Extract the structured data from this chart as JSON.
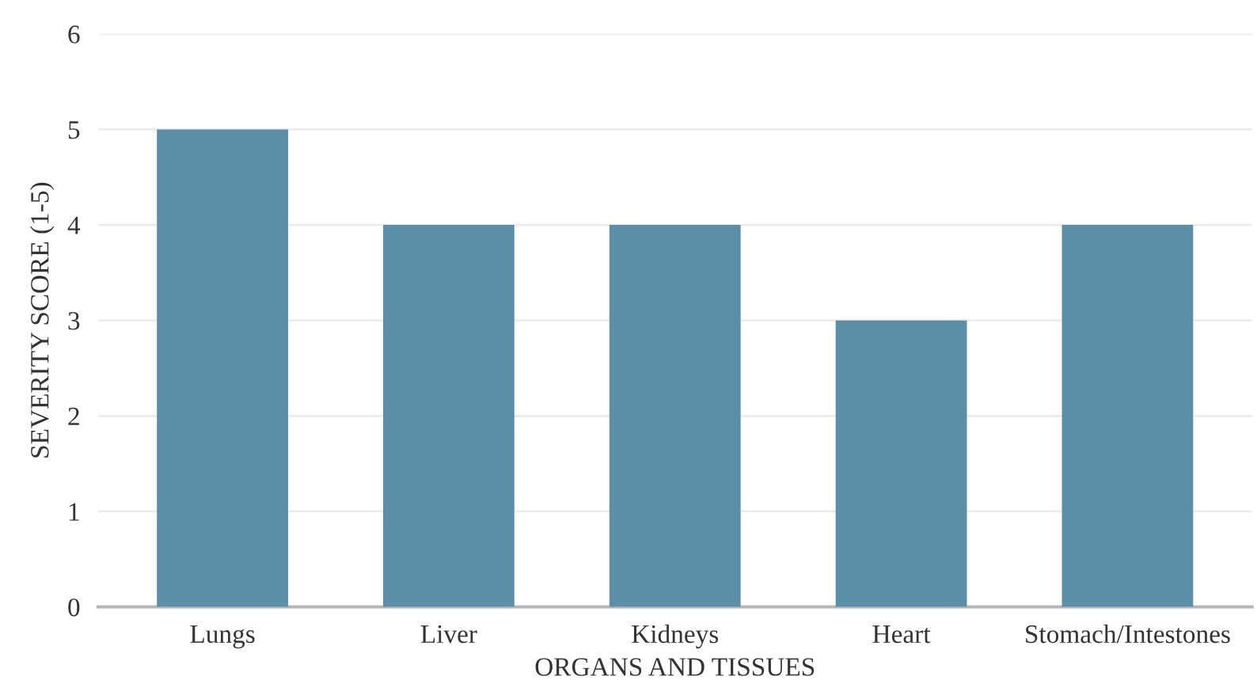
{
  "chart_data": {
    "type": "bar",
    "xlabel": "ORGANS AND TISSUES",
    "ylabel": "SEVERITY SCORE (1-5)",
    "categories": [
      "Lungs",
      "Liver",
      "Kidneys",
      "Heart",
      "Stomach/Intestones"
    ],
    "values": [
      5,
      4,
      4,
      3,
      4
    ],
    "color": "#5b8fa8",
    "ylim": [
      0,
      6
    ],
    "yticks": [
      0,
      1,
      2,
      3,
      4,
      5,
      6
    ],
    "grid": "y",
    "legend": false
  }
}
